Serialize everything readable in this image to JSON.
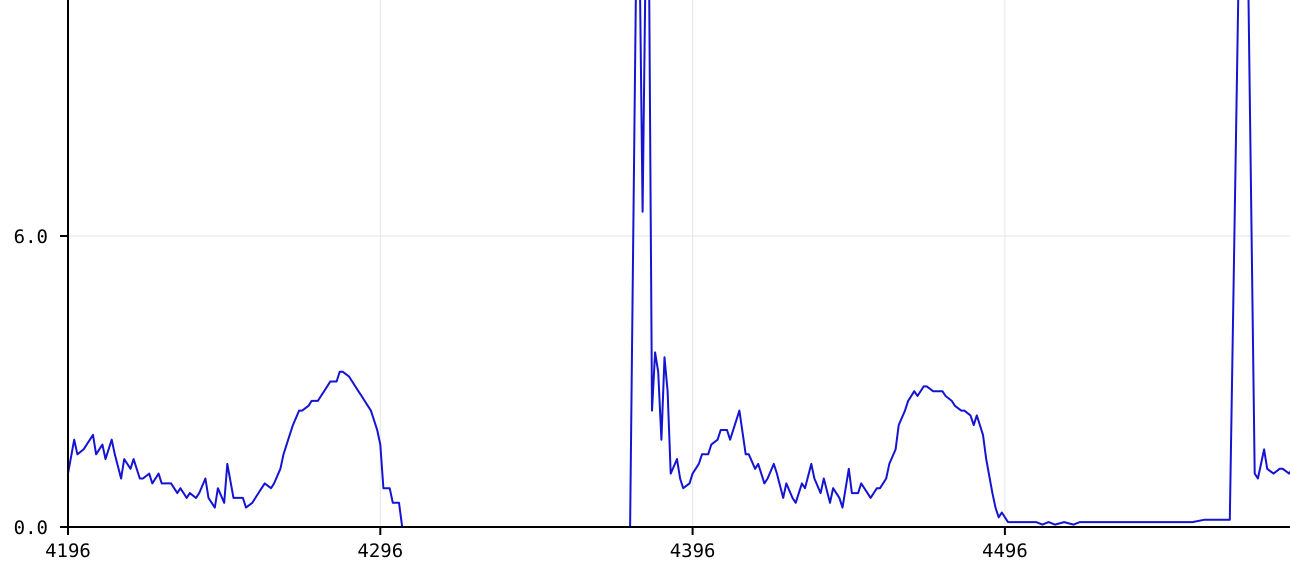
{
  "chart_data": {
    "type": "line",
    "title": "",
    "xlabel": "",
    "ylabel": "",
    "grid": true,
    "legend": "none",
    "xlim": [
      4196,
      4588
    ],
    "ylim": [
      0,
      12
    ],
    "x_ticks": [
      {
        "value": 4196,
        "label": "4196"
      },
      {
        "value": 4296,
        "label": "4296"
      },
      {
        "value": 4396,
        "label": "4396"
      },
      {
        "value": 4496,
        "label": "4496"
      }
    ],
    "y_ticks": [
      {
        "value": 0,
        "label": "0.0"
      },
      {
        "value": 6,
        "label": "6.0"
      }
    ],
    "series": [
      {
        "color": "#1414d2",
        "points": [
          [
            4196,
            1.1
          ],
          [
            4198,
            1.8
          ],
          [
            4199,
            1.5
          ],
          [
            4201,
            1.6
          ],
          [
            4202,
            1.7
          ],
          [
            4204,
            1.9
          ],
          [
            4205,
            1.5
          ],
          [
            4207,
            1.7
          ],
          [
            4208,
            1.4
          ],
          [
            4210,
            1.8
          ],
          [
            4211,
            1.5
          ],
          [
            4213,
            1.0
          ],
          [
            4214,
            1.4
          ],
          [
            4216,
            1.2
          ],
          [
            4217,
            1.4
          ],
          [
            4219,
            1.0
          ],
          [
            4220,
            1.0
          ],
          [
            4222,
            1.1
          ],
          [
            4223,
            0.9
          ],
          [
            4225,
            1.1
          ],
          [
            4226,
            0.9
          ],
          [
            4228,
            0.9
          ],
          [
            4229,
            0.9
          ],
          [
            4231,
            0.7
          ],
          [
            4232,
            0.8
          ],
          [
            4234,
            0.6
          ],
          [
            4235,
            0.7
          ],
          [
            4237,
            0.6
          ],
          [
            4238,
            0.7
          ],
          [
            4240,
            1.0
          ],
          [
            4241,
            0.6
          ],
          [
            4243,
            0.4
          ],
          [
            4244,
            0.8
          ],
          [
            4246,
            0.5
          ],
          [
            4247,
            1.3
          ],
          [
            4249,
            0.6
          ],
          [
            4250,
            0.6
          ],
          [
            4252,
            0.6
          ],
          [
            4253,
            0.4
          ],
          [
            4255,
            0.5
          ],
          [
            4256,
            0.6
          ],
          [
            4258,
            0.8
          ],
          [
            4259,
            0.9
          ],
          [
            4261,
            0.8
          ],
          [
            4262,
            0.9
          ],
          [
            4264,
            1.2
          ],
          [
            4265,
            1.5
          ],
          [
            4267,
            1.9
          ],
          [
            4268,
            2.1
          ],
          [
            4270,
            2.4
          ],
          [
            4271,
            2.4
          ],
          [
            4273,
            2.5
          ],
          [
            4274,
            2.6
          ],
          [
            4276,
            2.6
          ],
          [
            4277,
            2.7
          ],
          [
            4279,
            2.9
          ],
          [
            4280,
            3.0
          ],
          [
            4282,
            3.0
          ],
          [
            4283,
            3.2
          ],
          [
            4284,
            3.2
          ],
          [
            4286,
            3.1
          ],
          [
            4287,
            3.0
          ],
          [
            4289,
            2.8
          ],
          [
            4290,
            2.7
          ],
          [
            4292,
            2.5
          ],
          [
            4293,
            2.4
          ],
          [
            4295,
            2.0
          ],
          [
            4296,
            1.7
          ],
          [
            4297,
            0.8
          ],
          [
            4299,
            0.8
          ],
          [
            4300,
            0.5
          ],
          [
            4302,
            0.5
          ],
          [
            4303,
            0.0
          ],
          [
            4310,
            0.0
          ],
          [
            4320,
            0.0
          ],
          [
            4330,
            0.0
          ],
          [
            4340,
            0.0
          ],
          [
            4350,
            0.0
          ],
          [
            4360,
            0.0
          ],
          [
            4370,
            0.0
          ],
          [
            4376,
            0.0
          ],
          [
            4378,
            12.0
          ],
          [
            4379,
            12.0
          ],
          [
            4380,
            6.5
          ],
          [
            4381,
            12.0
          ],
          [
            4382,
            12.0
          ],
          [
            4383,
            2.4
          ],
          [
            4384,
            3.6
          ],
          [
            4385,
            3.2
          ],
          [
            4386,
            1.8
          ],
          [
            4387,
            3.5
          ],
          [
            4388,
            2.8
          ],
          [
            4389,
            1.1
          ],
          [
            4391,
            1.4
          ],
          [
            4392,
            1.0
          ],
          [
            4393,
            0.8
          ],
          [
            4395,
            0.9
          ],
          [
            4396,
            1.1
          ],
          [
            4398,
            1.3
          ],
          [
            4399,
            1.5
          ],
          [
            4401,
            1.5
          ],
          [
            4402,
            1.7
          ],
          [
            4404,
            1.8
          ],
          [
            4405,
            2.0
          ],
          [
            4407,
            2.0
          ],
          [
            4408,
            1.8
          ],
          [
            4410,
            2.2
          ],
          [
            4411,
            2.4
          ],
          [
            4413,
            1.5
          ],
          [
            4414,
            1.5
          ],
          [
            4416,
            1.2
          ],
          [
            4417,
            1.3
          ],
          [
            4419,
            0.9
          ],
          [
            4420,
            1.0
          ],
          [
            4422,
            1.3
          ],
          [
            4423,
            1.1
          ],
          [
            4425,
            0.6
          ],
          [
            4426,
            0.9
          ],
          [
            4428,
            0.6
          ],
          [
            4429,
            0.5
          ],
          [
            4431,
            0.9
          ],
          [
            4432,
            0.8
          ],
          [
            4434,
            1.3
          ],
          [
            4435,
            1.0
          ],
          [
            4437,
            0.7
          ],
          [
            4438,
            1.0
          ],
          [
            4440,
            0.5
          ],
          [
            4441,
            0.8
          ],
          [
            4443,
            0.6
          ],
          [
            4444,
            0.4
          ],
          [
            4446,
            1.2
          ],
          [
            4447,
            0.7
          ],
          [
            4449,
            0.7
          ],
          [
            4450,
            0.9
          ],
          [
            4452,
            0.7
          ],
          [
            4453,
            0.6
          ],
          [
            4455,
            0.8
          ],
          [
            4456,
            0.8
          ],
          [
            4458,
            1.0
          ],
          [
            4459,
            1.3
          ],
          [
            4461,
            1.6
          ],
          [
            4462,
            2.1
          ],
          [
            4464,
            2.4
          ],
          [
            4465,
            2.6
          ],
          [
            4467,
            2.8
          ],
          [
            4468,
            2.7
          ],
          [
            4470,
            2.9
          ],
          [
            4471,
            2.9
          ],
          [
            4473,
            2.8
          ],
          [
            4474,
            2.8
          ],
          [
            4476,
            2.8
          ],
          [
            4477,
            2.7
          ],
          [
            4479,
            2.6
          ],
          [
            4480,
            2.5
          ],
          [
            4482,
            2.4
          ],
          [
            4483,
            2.4
          ],
          [
            4485,
            2.3
          ],
          [
            4486,
            2.1
          ],
          [
            4487,
            2.3
          ],
          [
            4489,
            1.9
          ],
          [
            4490,
            1.4
          ],
          [
            4492,
            0.7
          ],
          [
            4493,
            0.4
          ],
          [
            4494,
            0.2
          ],
          [
            4495,
            0.3
          ],
          [
            4497,
            0.1
          ],
          [
            4500,
            0.1
          ],
          [
            4503,
            0.1
          ],
          [
            4506,
            0.1
          ],
          [
            4508,
            0.05
          ],
          [
            4510,
            0.1
          ],
          [
            4512,
            0.05
          ],
          [
            4515,
            0.1
          ],
          [
            4518,
            0.05
          ],
          [
            4520,
            0.1
          ],
          [
            4530,
            0.1
          ],
          [
            4540,
            0.1
          ],
          [
            4550,
            0.1
          ],
          [
            4556,
            0.1
          ],
          [
            4560,
            0.15
          ],
          [
            4568,
            0.15
          ],
          [
            4571,
            12.0
          ],
          [
            4572,
            12.0
          ],
          [
            4574,
            10.9
          ],
          [
            4576,
            1.1
          ],
          [
            4577,
            1.0
          ],
          [
            4579,
            1.6
          ],
          [
            4580,
            1.2
          ],
          [
            4582,
            1.1
          ],
          [
            4584,
            1.2
          ],
          [
            4585,
            1.2
          ],
          [
            4587,
            1.1
          ],
          [
            4588,
            1.2
          ]
        ]
      }
    ]
  }
}
